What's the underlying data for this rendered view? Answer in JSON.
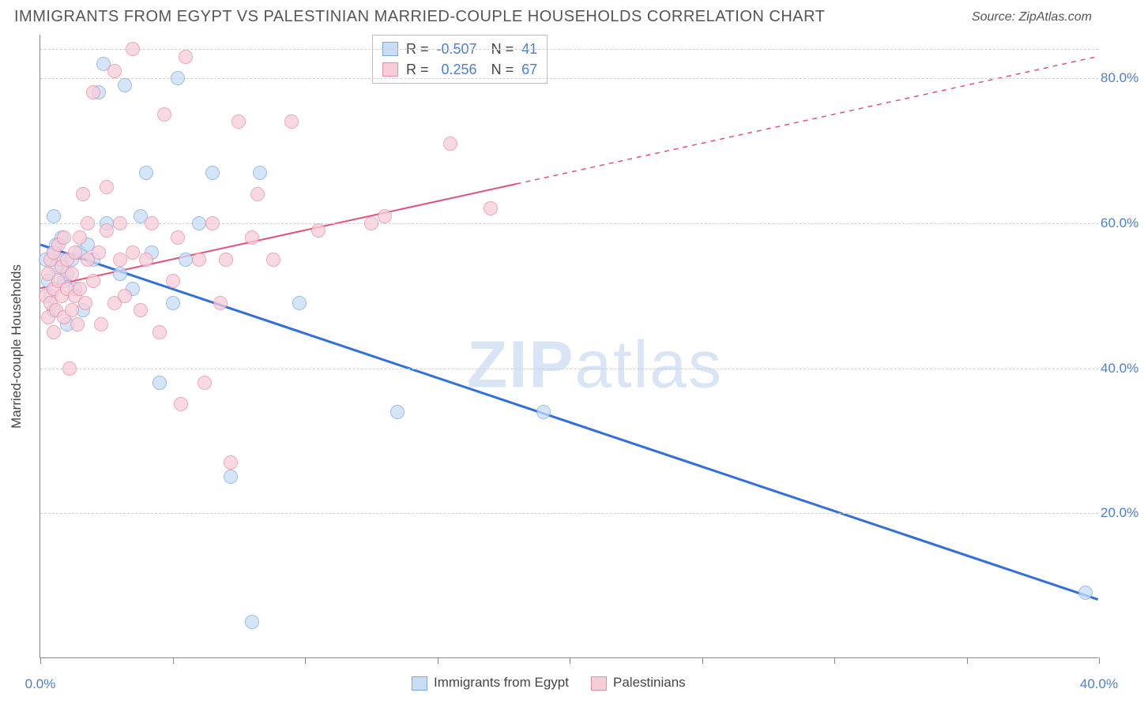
{
  "header": {
    "title": "IMMIGRANTS FROM EGYPT VS PALESTINIAN MARRIED-COUPLE HOUSEHOLDS CORRELATION CHART",
    "source": "Source: ZipAtlas.com"
  },
  "chart": {
    "type": "scatter",
    "ylabel": "Married-couple Households",
    "watermark_bold": "ZIP",
    "watermark_light": "atlas",
    "xlim": [
      0,
      40
    ],
    "ylim": [
      0,
      86
    ],
    "x_ticks": [
      0,
      5,
      10,
      15,
      20,
      25,
      30,
      35,
      40
    ],
    "x_tick_labels_shown": {
      "0": "0.0%",
      "40": "40.0%"
    },
    "y_gridlines": [
      20,
      40,
      60,
      80,
      84
    ],
    "y_tick_labels": {
      "20": "20.0%",
      "40": "40.0%",
      "60": "60.0%",
      "80": "80.0%"
    },
    "grid_color": "#d0d0d0",
    "axis_color": "#888888",
    "background_color": "#ffffff",
    "series": [
      {
        "name": "Immigrants from Egypt",
        "legend_label": "Immigrants from Egypt",
        "marker_fill": "#c8ddf6",
        "marker_stroke": "#7ba8e0",
        "marker_opacity": 0.75,
        "trend_color": "#2f6fe0",
        "trend_width": 3,
        "R": "-0.507",
        "N": "41",
        "trend": {
          "x1": 0,
          "y1": 57,
          "x2": 40,
          "y2": 8,
          "dash_from_x": 40
        },
        "points": [
          [
            0.2,
            55
          ],
          [
            0.3,
            52
          ],
          [
            0.4,
            50
          ],
          [
            0.5,
            48
          ],
          [
            0.5,
            61
          ],
          [
            0.5,
            56
          ],
          [
            0.6,
            54
          ],
          [
            0.6,
            57
          ],
          [
            0.8,
            58
          ],
          [
            0.8,
            55
          ],
          [
            0.9,
            52
          ],
          [
            1.0,
            46
          ],
          [
            1.0,
            53
          ],
          [
            1.2,
            55
          ],
          [
            1.3,
            51
          ],
          [
            1.5,
            56
          ],
          [
            1.6,
            48
          ],
          [
            1.8,
            57
          ],
          [
            2.0,
            55
          ],
          [
            2.2,
            78
          ],
          [
            2.4,
            82
          ],
          [
            2.5,
            60
          ],
          [
            3.0,
            53
          ],
          [
            3.2,
            79
          ],
          [
            3.5,
            51
          ],
          [
            3.8,
            61
          ],
          [
            4.0,
            67
          ],
          [
            4.2,
            56
          ],
          [
            4.5,
            38
          ],
          [
            5.0,
            49
          ],
          [
            5.2,
            80
          ],
          [
            5.5,
            55
          ],
          [
            6.0,
            60
          ],
          [
            6.5,
            67
          ],
          [
            7.2,
            25
          ],
          [
            8.0,
            5
          ],
          [
            8.3,
            67
          ],
          [
            9.8,
            49
          ],
          [
            13.5,
            34
          ],
          [
            19.0,
            34
          ],
          [
            39.5,
            9
          ]
        ]
      },
      {
        "name": "Palestinians",
        "legend_label": "Palestinians",
        "marker_fill": "#f7cdd8",
        "marker_stroke": "#e98ba3",
        "marker_opacity": 0.75,
        "trend_color": "#e74f7a",
        "trend_width": 2,
        "R": "0.256",
        "N": "67",
        "trend": {
          "x1": 0,
          "y1": 51,
          "x2": 40,
          "y2": 83,
          "dash_from_x": 18
        },
        "points": [
          [
            0.2,
            50
          ],
          [
            0.3,
            47
          ],
          [
            0.3,
            53
          ],
          [
            0.4,
            55
          ],
          [
            0.4,
            49
          ],
          [
            0.5,
            51
          ],
          [
            0.5,
            56
          ],
          [
            0.5,
            45
          ],
          [
            0.6,
            48
          ],
          [
            0.7,
            52
          ],
          [
            0.7,
            57
          ],
          [
            0.8,
            50
          ],
          [
            0.8,
            54
          ],
          [
            0.9,
            47
          ],
          [
            0.9,
            58
          ],
          [
            1.0,
            51
          ],
          [
            1.0,
            55
          ],
          [
            1.1,
            40
          ],
          [
            1.2,
            48
          ],
          [
            1.2,
            53
          ],
          [
            1.3,
            50
          ],
          [
            1.3,
            56
          ],
          [
            1.4,
            46
          ],
          [
            1.5,
            51
          ],
          [
            1.5,
            58
          ],
          [
            1.6,
            64
          ],
          [
            1.7,
            49
          ],
          [
            1.8,
            55
          ],
          [
            1.8,
            60
          ],
          [
            2.0,
            52
          ],
          [
            2.0,
            78
          ],
          [
            2.2,
            56
          ],
          [
            2.3,
            46
          ],
          [
            2.5,
            59
          ],
          [
            2.5,
            65
          ],
          [
            2.8,
            49
          ],
          [
            2.8,
            81
          ],
          [
            3.0,
            55
          ],
          [
            3.0,
            60
          ],
          [
            3.2,
            50
          ],
          [
            3.5,
            56
          ],
          [
            3.5,
            84
          ],
          [
            3.8,
            48
          ],
          [
            4.0,
            55
          ],
          [
            4.2,
            60
          ],
          [
            4.5,
            45
          ],
          [
            4.7,
            75
          ],
          [
            5.0,
            52
          ],
          [
            5.2,
            58
          ],
          [
            5.3,
            35
          ],
          [
            5.5,
            83
          ],
          [
            6.0,
            55
          ],
          [
            6.2,
            38
          ],
          [
            6.5,
            60
          ],
          [
            6.8,
            49
          ],
          [
            7.0,
            55
          ],
          [
            7.2,
            27
          ],
          [
            7.5,
            74
          ],
          [
            8.0,
            58
          ],
          [
            8.2,
            64
          ],
          [
            8.8,
            55
          ],
          [
            9.5,
            74
          ],
          [
            10.5,
            59
          ],
          [
            12.5,
            60
          ],
          [
            13.0,
            61
          ],
          [
            15.5,
            71
          ],
          [
            17.0,
            62
          ]
        ]
      }
    ]
  }
}
